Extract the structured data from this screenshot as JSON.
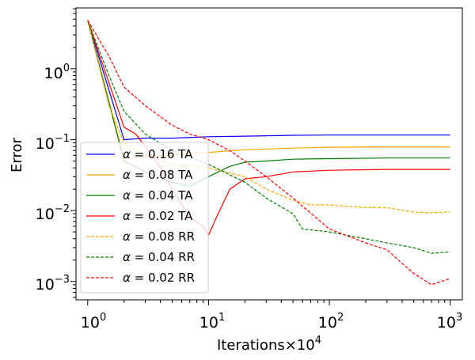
{
  "chart_data": {
    "type": "line",
    "xscale": "log",
    "yscale": "log",
    "xlabel": "Iterations×10",
    "xlabel_exponent": "4",
    "ylabel": "Error",
    "xlim": [
      0.8,
      1260
    ],
    "ylim": [
      0.00055,
      7.2
    ],
    "x_ticks": [
      {
        "base": "10",
        "exp": "0",
        "value": 1
      },
      {
        "base": "10",
        "exp": "1",
        "value": 10
      },
      {
        "base": "10",
        "exp": "2",
        "value": 100
      },
      {
        "base": "10",
        "exp": "3",
        "value": 1000
      }
    ],
    "y_ticks": [
      {
        "base": "10",
        "exp": "0",
        "value": 1
      },
      {
        "base": "10",
        "exp": "−1",
        "value": 0.1
      },
      {
        "base": "10",
        "exp": "−2",
        "value": 0.01
      },
      {
        "base": "10",
        "exp": "−3",
        "value": 0.001
      }
    ],
    "legend_position": "lower-left",
    "series": [
      {
        "name": "α = 0.16 TA",
        "greek": "α",
        "label": "= 0.16 TA",
        "color": "#0000ff",
        "dash": "solid",
        "x": [
          1,
          2,
          3,
          5,
          10,
          20,
          50,
          100,
          300,
          1000
        ],
        "y": [
          4.8,
          0.1,
          0.105,
          0.105,
          0.11,
          0.112,
          0.115,
          0.116,
          0.116,
          0.116
        ]
      },
      {
        "name": "α = 0.08 TA",
        "greek": "α",
        "label": "= 0.08 TA",
        "color": "#ffa500",
        "dash": "solid",
        "x": [
          1,
          2,
          3,
          5,
          10,
          20,
          50,
          100,
          300,
          1000
        ],
        "y": [
          4.8,
          0.054,
          0.058,
          0.062,
          0.066,
          0.072,
          0.076,
          0.078,
          0.079,
          0.079
        ]
      },
      {
        "name": "α = 0.04 TA",
        "greek": "α",
        "label": "= 0.04 TA",
        "color": "#008000",
        "dash": "solid",
        "x": [
          1,
          2,
          3,
          5,
          7,
          10,
          15,
          20,
          30,
          50,
          100,
          300,
          1000
        ],
        "y": [
          4.8,
          0.05,
          0.035,
          0.025,
          0.022,
          0.03,
          0.042,
          0.048,
          0.05,
          0.053,
          0.054,
          0.055,
          0.055
        ]
      },
      {
        "name": "α = 0.02 TA",
        "greek": "α",
        "label": "= 0.02 TA",
        "color": "#ff0000",
        "dash": "solid",
        "x": [
          1,
          2,
          2.5,
          3,
          4,
          5,
          7,
          9,
          10,
          12,
          15,
          20,
          30,
          50,
          100,
          300,
          1000
        ],
        "y": [
          4.8,
          0.15,
          0.12,
          0.08,
          0.04,
          0.02,
          0.008,
          0.006,
          0.0045,
          0.009,
          0.02,
          0.028,
          0.03,
          0.035,
          0.037,
          0.038,
          0.038
        ]
      },
      {
        "name": "α = 0.08 RR",
        "greek": "α",
        "label": "= 0.08 RR",
        "color": "#ffa500",
        "dash": "dashed",
        "x": [
          1,
          1.5,
          2,
          3,
          5,
          10,
          20,
          30,
          50,
          70,
          100,
          200,
          300,
          500,
          700,
          1000
        ],
        "y": [
          4.8,
          0.3,
          0.09,
          0.06,
          0.045,
          0.04,
          0.03,
          0.02,
          0.014,
          0.012,
          0.012,
          0.011,
          0.011,
          0.0095,
          0.0093,
          0.0095
        ]
      },
      {
        "name": "α = 0.04 RR",
        "greek": "α",
        "label": "= 0.04 RR",
        "color": "#008000",
        "dash": "dashed",
        "x": [
          1,
          1.5,
          2,
          3,
          5,
          10,
          20,
          30,
          50,
          60,
          100,
          200,
          300,
          500,
          700,
          1000
        ],
        "y": [
          4.8,
          0.8,
          0.25,
          0.12,
          0.07,
          0.045,
          0.025,
          0.015,
          0.009,
          0.0055,
          0.005,
          0.004,
          0.0035,
          0.003,
          0.0025,
          0.0026
        ]
      },
      {
        "name": "α = 0.02 RR",
        "greek": "α",
        "label": "= 0.02 RR",
        "color": "#ff0000",
        "dash": "dashed",
        "x": [
          1,
          1.5,
          2,
          3,
          5,
          7,
          10,
          15,
          20,
          30,
          50,
          100,
          200,
          300,
          400,
          500,
          700,
          1000
        ],
        "y": [
          4.8,
          1.5,
          0.55,
          0.3,
          0.16,
          0.12,
          0.1,
          0.07,
          0.05,
          0.03,
          0.015,
          0.0055,
          0.0035,
          0.0028,
          0.0018,
          0.0013,
          0.0009,
          0.0011
        ]
      }
    ]
  }
}
